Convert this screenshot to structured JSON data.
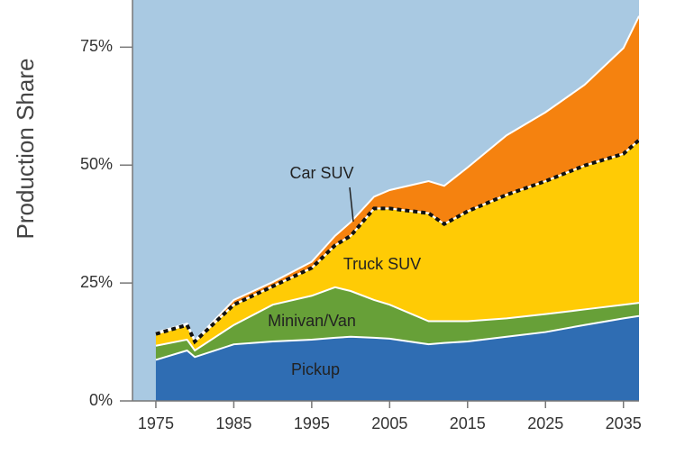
{
  "chart_data": {
    "type": "stacked-area",
    "y_label": "Production Share",
    "x": [
      1975,
      1979,
      1980,
      1985,
      1990,
      1995,
      1998,
      2000,
      2003,
      2005,
      2010,
      2012,
      2015,
      2020,
      2025,
      2030,
      2035,
      2037
    ],
    "series": [
      {
        "name": "Pickup",
        "color": "#2f6db3",
        "values": [
          8.7,
          10.7,
          9.3,
          12,
          12.6,
          13,
          13.4,
          13.6,
          13.4,
          13.2,
          12,
          12.3,
          12.6,
          13.6,
          14.6,
          16.1,
          17.5,
          18
        ]
      },
      {
        "name": "Minivan/Van",
        "color": "#67a038",
        "values": [
          3,
          2.3,
          1.4,
          4.1,
          7.8,
          9.3,
          10.7,
          9.7,
          8,
          7.2,
          4.9,
          4.6,
          4.3,
          3.9,
          3.8,
          3.3,
          2.9,
          2.8
        ]
      },
      {
        "name": "Truck SUV",
        "color": "#ffcb05",
        "values": [
          2.5,
          3.1,
          1.9,
          4.3,
          3.9,
          5.9,
          8.9,
          11.7,
          19.4,
          20.4,
          22.9,
          20.6,
          23.3,
          26.2,
          28.2,
          30.5,
          32,
          34.5
        ]
      },
      {
        "name": "Car SUV",
        "color": "#f5820f",
        "values": [
          0.3,
          0.3,
          0.2,
          1,
          0.9,
          1.3,
          2,
          2.9,
          2.5,
          3.9,
          6.8,
          8.1,
          9.3,
          12.6,
          14.6,
          17.1,
          22.4,
          26.3
        ]
      }
    ],
    "background_color": "#a9c9e2",
    "xlim": [
      1972,
      2037
    ],
    "xticks": [
      1975,
      1985,
      1995,
      2005,
      2015,
      2025,
      2035
    ],
    "ylim": [
      0,
      85
    ],
    "yticks": [
      {
        "value": 0,
        "label": "0%"
      },
      {
        "value": 25,
        "label": "25%"
      },
      {
        "value": 50,
        "label": "50%"
      },
      {
        "value": 75,
        "label": "75%"
      }
    ]
  }
}
